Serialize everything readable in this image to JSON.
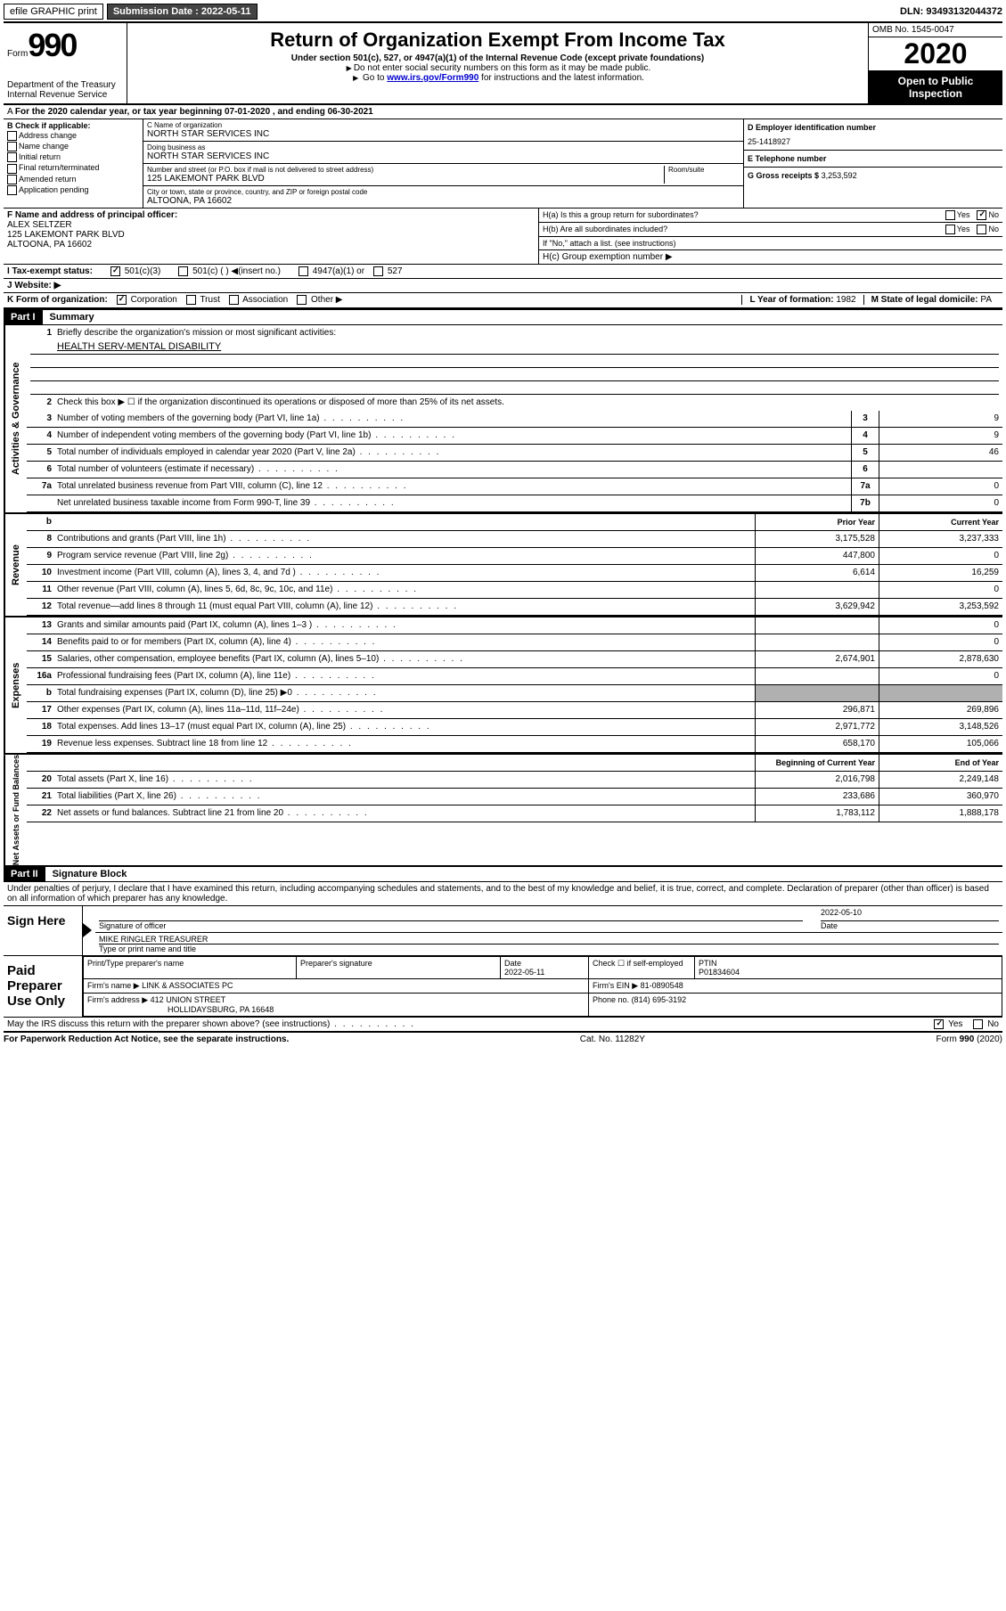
{
  "top": {
    "efile": "efile GRAPHIC print",
    "sub_label": "Submission Date :",
    "sub_date": "2022-05-11",
    "dln": "DLN: 93493132044372"
  },
  "header": {
    "form": "Form",
    "num": "990",
    "dept": "Department of the Treasury Internal Revenue Service",
    "title": "Return of Organization Exempt From Income Tax",
    "sub1": "Under section 501(c), 527, or 4947(a)(1) of the Internal Revenue Code (except private foundations)",
    "sub2": "Do not enter social security numbers on this form as it may be made public.",
    "sub3_pre": "Go to ",
    "sub3_link": "www.irs.gov/Form990",
    "sub3_post": " for instructions and the latest information.",
    "omb": "OMB No. 1545-0047",
    "year": "2020",
    "inspection": "Open to Public Inspection"
  },
  "A": {
    "text": "For the 2020 calendar year, or tax year beginning 07-01-2020    , and ending 06-30-2021"
  },
  "B": {
    "label": "B Check if applicable:",
    "items": [
      "Address change",
      "Name change",
      "Initial return",
      "Final return/terminated",
      "Amended return",
      "Application pending"
    ]
  },
  "C": {
    "name_label": "C Name of organization",
    "name": "NORTH STAR SERVICES INC",
    "dba_label": "Doing business as",
    "dba": "NORTH STAR SERVICES INC",
    "addr_label": "Number and street (or P.O. box if mail is not delivered to street address)",
    "room_label": "Room/suite",
    "addr": "125 LAKEMONT PARK BLVD",
    "city_label": "City or town, state or province, country, and ZIP or foreign postal code",
    "city": "ALTOONA, PA  16602"
  },
  "D": {
    "label": "D Employer identification number",
    "val": "25-1418927"
  },
  "E": {
    "label": "E Telephone number",
    "val": ""
  },
  "G": {
    "label": "G Gross receipts $",
    "val": "3,253,592"
  },
  "F": {
    "label": "F  Name and address of principal officer:",
    "name": "ALEX SELTZER",
    "addr": "125 LAKEMONT PARK BLVD",
    "city": "ALTOONA, PA  16602"
  },
  "H": {
    "a": "H(a)  Is this a group return for subordinates?",
    "b": "H(b)  Are all subordinates included?",
    "b_note": "If \"No,\" attach a list. (see instructions)",
    "c": "H(c)  Group exemption number ▶",
    "yes": "Yes",
    "no": "No"
  },
  "I": {
    "label": "I   Tax-exempt status:",
    "opts": [
      "501(c)(3)",
      "501(c) (  ) ◀(insert no.)",
      "4947(a)(1) or",
      "527"
    ]
  },
  "J": {
    "label": "J   Website: ▶"
  },
  "K": {
    "label": "K Form of organization:",
    "opts": [
      "Corporation",
      "Trust",
      "Association",
      "Other ▶"
    ]
  },
  "L": {
    "label": "L Year of formation:",
    "val": "1982"
  },
  "M": {
    "label": "M State of legal domicile:",
    "val": "PA"
  },
  "part1": {
    "num": "Part I",
    "title": "Summary",
    "l1": "Briefly describe the organization's mission or most significant activities:",
    "mission": "HEALTH SERV-MENTAL DISABILITY",
    "l2": "Check this box ▶ ☐  if the organization discontinued its operations or disposed of more than 25% of its net assets.",
    "rows_single": [
      {
        "n": "3",
        "desc": "Number of voting members of the governing body (Part VI, line 1a)",
        "box": "3",
        "val": "9"
      },
      {
        "n": "4",
        "desc": "Number of independent voting members of the governing body (Part VI, line 1b)",
        "box": "4",
        "val": "9"
      },
      {
        "n": "5",
        "desc": "Total number of individuals employed in calendar year 2020 (Part V, line 2a)",
        "box": "5",
        "val": "46"
      },
      {
        "n": "6",
        "desc": "Total number of volunteers (estimate if necessary)",
        "box": "6",
        "val": ""
      },
      {
        "n": "7a",
        "desc": "Total unrelated business revenue from Part VIII, column (C), line 12",
        "box": "7a",
        "val": "0"
      },
      {
        "n": "",
        "desc": "Net unrelated business taxable income from Form 990-T, line 39",
        "box": "7b",
        "val": "0"
      }
    ],
    "head_prior": "Prior Year",
    "head_current": "Current Year",
    "revenue": [
      {
        "n": "8",
        "desc": "Contributions and grants (Part VIII, line 1h)",
        "p": "3,175,528",
        "c": "3,237,333"
      },
      {
        "n": "9",
        "desc": "Program service revenue (Part VIII, line 2g)",
        "p": "447,800",
        "c": "0"
      },
      {
        "n": "10",
        "desc": "Investment income (Part VIII, column (A), lines 3, 4, and 7d )",
        "p": "6,614",
        "c": "16,259"
      },
      {
        "n": "11",
        "desc": "Other revenue (Part VIII, column (A), lines 5, 6d, 8c, 9c, 10c, and 11e)",
        "p": "",
        "c": "0"
      },
      {
        "n": "12",
        "desc": "Total revenue—add lines 8 through 11 (must equal Part VIII, column (A), line 12)",
        "p": "3,629,942",
        "c": "3,253,592"
      }
    ],
    "expenses": [
      {
        "n": "13",
        "desc": "Grants and similar amounts paid (Part IX, column (A), lines 1–3 )",
        "p": "",
        "c": "0"
      },
      {
        "n": "14",
        "desc": "Benefits paid to or for members (Part IX, column (A), line 4)",
        "p": "",
        "c": "0"
      },
      {
        "n": "15",
        "desc": "Salaries, other compensation, employee benefits (Part IX, column (A), lines 5–10)",
        "p": "2,674,901",
        "c": "2,878,630"
      },
      {
        "n": "16a",
        "desc": "Professional fundraising fees (Part IX, column (A), line 11e)",
        "p": "",
        "c": "0"
      },
      {
        "n": "b",
        "desc": "Total fundraising expenses (Part IX, column (D), line 25) ▶0",
        "p": "grey",
        "c": "grey"
      },
      {
        "n": "17",
        "desc": "Other expenses (Part IX, column (A), lines 11a–11d, 11f–24e)",
        "p": "296,871",
        "c": "269,896"
      },
      {
        "n": "18",
        "desc": "Total expenses. Add lines 13–17 (must equal Part IX, column (A), line 25)",
        "p": "2,971,772",
        "c": "3,148,526"
      },
      {
        "n": "19",
        "desc": "Revenue less expenses. Subtract line 18 from line 12",
        "p": "658,170",
        "c": "105,066"
      }
    ],
    "head_begin": "Beginning of Current Year",
    "head_end": "End of Year",
    "netassets": [
      {
        "n": "20",
        "desc": "Total assets (Part X, line 16)",
        "p": "2,016,798",
        "c": "2,249,148"
      },
      {
        "n": "21",
        "desc": "Total liabilities (Part X, line 26)",
        "p": "233,686",
        "c": "360,970"
      },
      {
        "n": "22",
        "desc": "Net assets or fund balances. Subtract line 21 from line 20",
        "p": "1,783,112",
        "c": "1,888,178"
      }
    ],
    "vlabels": {
      "gov": "Activities & Governance",
      "rev": "Revenue",
      "exp": "Expenses",
      "net": "Net Assets or Fund Balances"
    }
  },
  "part2": {
    "num": "Part II",
    "title": "Signature Block",
    "decl": "Under penalties of perjury, I declare that I have examined this return, including accompanying schedules and statements, and to the best of my knowledge and belief, it is true, correct, and complete. Declaration of preparer (other than officer) is based on all information of which preparer has any knowledge."
  },
  "sign": {
    "here": "Sign Here",
    "sig_officer": "Signature of officer",
    "date": "Date",
    "date_val": "2022-05-10",
    "name": "MIKE RINGLER  TREASURER",
    "name_label": "Type or print name and title"
  },
  "paid": {
    "label": "Paid Preparer Use Only",
    "h1": "Print/Type preparer's name",
    "h2": "Preparer's signature",
    "h3": "Date",
    "h3v": "2022-05-11",
    "h4": "Check ☐ if self-employed",
    "h5": "PTIN",
    "h5v": "P01834604",
    "firm_label": "Firm's name    ▶",
    "firm": "LINK & ASSOCIATES PC",
    "ein_label": "Firm's EIN ▶",
    "ein": "81-0890548",
    "addr_label": "Firm's address ▶",
    "addr1": "412 UNION STREET",
    "addr2": "HOLLIDAYSBURG, PA  16648",
    "phone_label": "Phone no.",
    "phone": "(814) 695-3192"
  },
  "discuss": {
    "text": "May the IRS discuss this return with the preparer shown above? (see instructions)",
    "yes": "Yes",
    "no": "No"
  },
  "footer": {
    "left": "For Paperwork Reduction Act Notice, see the separate instructions.",
    "mid": "Cat. No. 11282Y",
    "right": "Form 990 (2020)"
  }
}
